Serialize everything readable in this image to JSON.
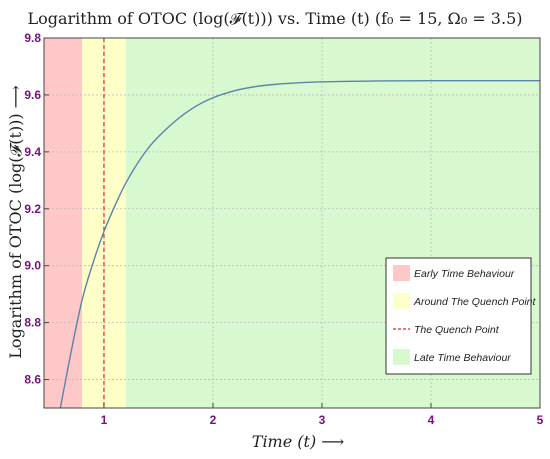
{
  "chart_data": {
    "type": "line",
    "title": "Logarithm of OTOC (log(𝓕(t))) vs. Time (t) (f₀ = 15, Ω₀ = 3.5)",
    "xlabel": "Time (t)  ⟶",
    "ylabel": "Logarithm of OTOC (log(𝓕(t)))  ⟶",
    "xlim": [
      0.45,
      5.0
    ],
    "ylim": [
      8.5,
      9.8
    ],
    "x_ticks": [
      "1",
      "2",
      "3",
      "4",
      "5"
    ],
    "y_ticks": [
      "8.6",
      "8.8",
      "9.0",
      "9.2",
      "9.4",
      "9.6",
      "9.8"
    ],
    "grid": true,
    "legend_position": "bottom-right",
    "regions": [
      {
        "name": "Early Time Behaviour",
        "x_start": 0.45,
        "x_end": 0.8,
        "color": "#ffc8c8"
      },
      {
        "name": "Around The Quench Point",
        "x_start": 0.8,
        "x_end": 1.2,
        "color": "#ffffc8"
      },
      {
        "name": "Late Time Behaviour",
        "x_start": 1.2,
        "x_end": 5.0,
        "color": "#d8f8d0"
      }
    ],
    "quench_point": {
      "name": "The Quench Point",
      "x": 1.0,
      "color": "#e8202a"
    },
    "series": [
      {
        "color": "#5b84a8",
        "x": [
          0.6,
          0.7,
          0.8,
          0.9,
          1.0,
          1.1,
          1.2,
          1.4,
          1.6,
          1.8,
          2.0,
          2.2,
          2.4,
          2.6,
          2.8,
          3.0,
          3.5,
          4.0,
          4.5,
          5.0
        ],
        "y": [
          8.5,
          8.7,
          8.88,
          9.01,
          9.12,
          9.21,
          9.29,
          9.41,
          9.49,
          9.55,
          9.59,
          9.615,
          9.63,
          9.638,
          9.643,
          9.646,
          9.649,
          9.65,
          9.65,
          9.65
        ]
      }
    ]
  }
}
